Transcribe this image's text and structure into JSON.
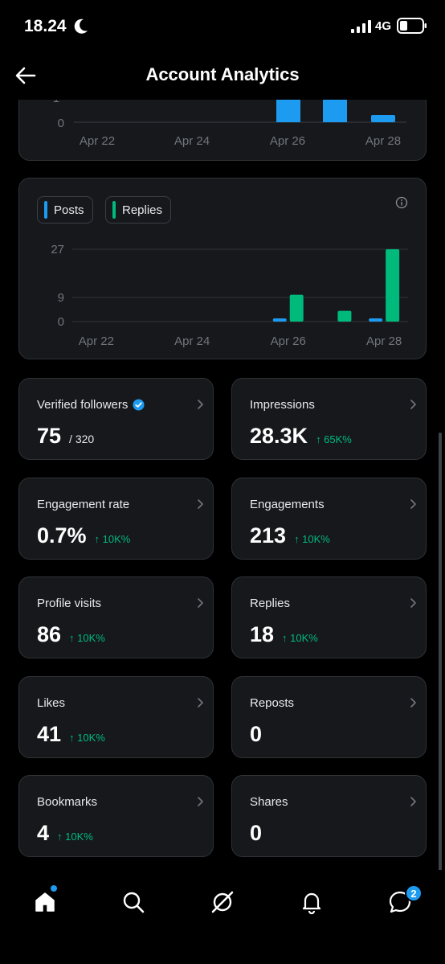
{
  "status_bar": {
    "time": "18.24",
    "network": "4G"
  },
  "header": {
    "title": "Account Analytics"
  },
  "top_chart": {
    "x_ticks": [
      "Apr 22",
      "Apr 24",
      "Apr 26",
      "Apr 28"
    ],
    "y_ticks": [
      "0"
    ]
  },
  "chart_data": {
    "type": "bar",
    "categories": [
      "Apr 22",
      "Apr 23",
      "Apr 24",
      "Apr 25",
      "Apr 26",
      "Apr 27",
      "Apr 28"
    ],
    "series": [
      {
        "name": "Posts",
        "values": [
          0,
          0,
          0,
          0,
          1,
          0,
          0.5
        ],
        "color": "#1d9bf0"
      },
      {
        "name": "Replies",
        "values": [
          0,
          0,
          0,
          0,
          10,
          4,
          27
        ],
        "color": "#00ba7c"
      }
    ],
    "x_ticks": [
      "Apr 22",
      "Apr 24",
      "Apr 26",
      "Apr 28"
    ],
    "y_ticks": [
      0,
      9,
      27
    ],
    "ylim": [
      0,
      30
    ],
    "legend": [
      "Posts",
      "Replies"
    ],
    "legend_placement": "top-left",
    "grid": true
  },
  "stats": [
    {
      "label": "Verified followers",
      "value": "75",
      "sub": "/ 320",
      "trend": "",
      "verified": true
    },
    {
      "label": "Impressions",
      "value": "28.3K",
      "sub": "",
      "trend": "↑ 65K%"
    },
    {
      "label": "Engagement rate",
      "value": "0.7%",
      "sub": "",
      "trend": "↑ 10K%"
    },
    {
      "label": "Engagements",
      "value": "213",
      "sub": "",
      "trend": "↑ 10K%"
    },
    {
      "label": "Profile visits",
      "value": "86",
      "sub": "",
      "trend": "↑ 10K%"
    },
    {
      "label": "Replies",
      "value": "18",
      "sub": "",
      "trend": "↑ 10K%"
    },
    {
      "label": "Likes",
      "value": "41",
      "sub": "",
      "trend": "↑ 10K%"
    },
    {
      "label": "Reposts",
      "value": "0",
      "sub": "",
      "trend": ""
    },
    {
      "label": "Bookmarks",
      "value": "4",
      "sub": "",
      "trend": "↑ 10K%"
    },
    {
      "label": "Shares",
      "value": "0",
      "sub": "",
      "trend": ""
    }
  ],
  "tabbar": {
    "messages_badge": "2"
  },
  "colors": {
    "accent": "#1d9bf0",
    "positive": "#00ba7c",
    "card": "#16181c"
  }
}
